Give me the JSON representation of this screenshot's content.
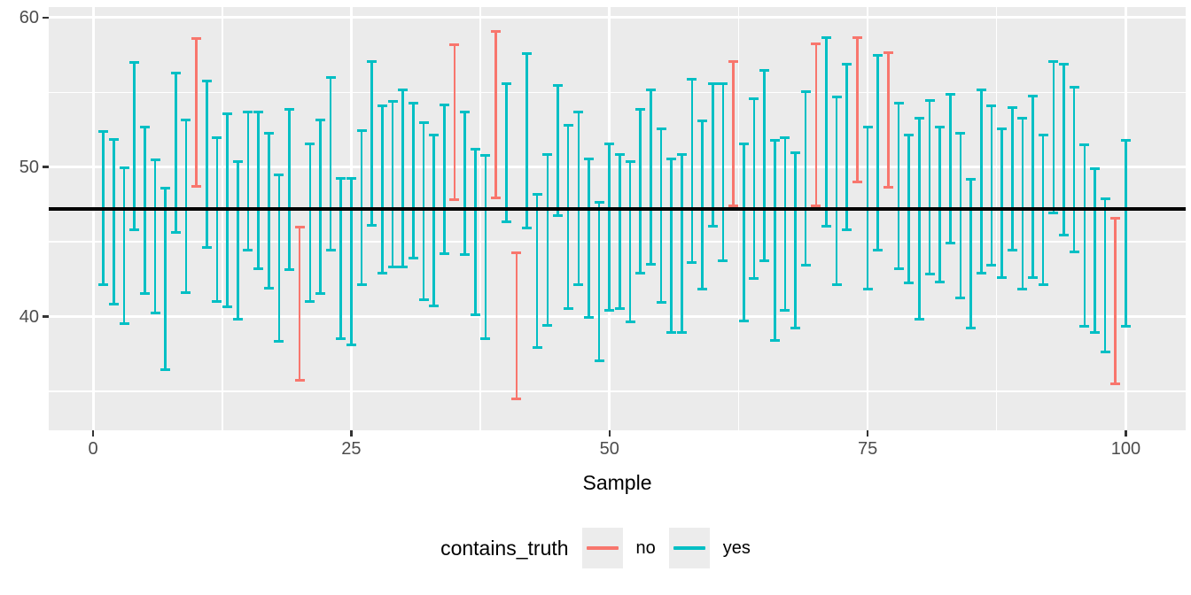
{
  "chart_data": {
    "type": "errorbar",
    "title": "",
    "xlabel": "Sample",
    "ylabel": "",
    "x_ticks": [
      0,
      25,
      50,
      75,
      100
    ],
    "y_ticks": [
      60,
      50,
      40
    ],
    "x_minor_gridlines": [
      12.5,
      37.5,
      62.5,
      87.5
    ],
    "y_minor_gridlines": [
      35,
      45,
      55
    ],
    "xlim": [
      -4.3,
      105.8
    ],
    "ylim": [
      32.4,
      60.7
    ],
    "grid": "on",
    "panel_background": "#EBEBEB",
    "gridline_color": "#FFFFFF",
    "truth_line_value": 47.2,
    "truth_line_color": "#000000",
    "legend": {
      "title": "contains_truth",
      "position": "bottom",
      "entries": [
        {
          "label": "no",
          "color": "#F8766D"
        },
        {
          "label": "yes",
          "color": "#00BFC4"
        }
      ]
    },
    "series_format": "[sample, lower, upper, contains_truth]",
    "bars": [
      [
        1,
        42.1,
        52.4,
        "yes"
      ],
      [
        2,
        40.8,
        51.9,
        "yes"
      ],
      [
        3,
        39.5,
        50.0,
        "yes"
      ],
      [
        4,
        45.8,
        57.0,
        "yes"
      ],
      [
        5,
        41.5,
        52.7,
        "yes"
      ],
      [
        6,
        40.2,
        50.5,
        "yes"
      ],
      [
        7,
        36.4,
        48.6,
        "yes"
      ],
      [
        8,
        45.6,
        56.3,
        "yes"
      ],
      [
        9,
        41.6,
        53.2,
        "yes"
      ],
      [
        10,
        48.7,
        58.6,
        "no"
      ],
      [
        11,
        44.6,
        55.8,
        "yes"
      ],
      [
        12,
        41.0,
        52.0,
        "yes"
      ],
      [
        13,
        40.6,
        53.6,
        "yes"
      ],
      [
        14,
        39.8,
        50.4,
        "yes"
      ],
      [
        15,
        44.4,
        53.7,
        "yes"
      ],
      [
        16,
        43.2,
        53.7,
        "yes"
      ],
      [
        17,
        41.9,
        52.3,
        "yes"
      ],
      [
        18,
        38.3,
        49.5,
        "yes"
      ],
      [
        19,
        43.1,
        53.9,
        "yes"
      ],
      [
        20,
        35.7,
        46.0,
        "no"
      ],
      [
        21,
        41.0,
        51.6,
        "yes"
      ],
      [
        22,
        41.5,
        53.2,
        "yes"
      ],
      [
        23,
        44.4,
        56.0,
        "yes"
      ],
      [
        24,
        38.5,
        49.3,
        "yes"
      ],
      [
        25,
        38.1,
        49.3,
        "yes"
      ],
      [
        26,
        42.1,
        52.5,
        "yes"
      ],
      [
        27,
        46.1,
        57.1,
        "yes"
      ],
      [
        28,
        42.9,
        54.1,
        "yes"
      ],
      [
        29,
        43.3,
        54.4,
        "yes"
      ],
      [
        30,
        43.3,
        55.2,
        "yes"
      ],
      [
        31,
        43.9,
        54.3,
        "yes"
      ],
      [
        32,
        41.1,
        53.0,
        "yes"
      ],
      [
        33,
        40.7,
        52.2,
        "yes"
      ],
      [
        34,
        44.2,
        54.2,
        "yes"
      ],
      [
        35,
        47.8,
        58.2,
        "no"
      ],
      [
        36,
        44.1,
        53.7,
        "yes"
      ],
      [
        37,
        40.1,
        51.2,
        "yes"
      ],
      [
        38,
        38.5,
        50.8,
        "yes"
      ],
      [
        39,
        47.9,
        59.1,
        "no"
      ],
      [
        40,
        46.3,
        55.6,
        "yes"
      ],
      [
        41,
        34.5,
        44.3,
        "no"
      ],
      [
        42,
        45.9,
        57.6,
        "yes"
      ],
      [
        43,
        37.9,
        48.2,
        "yes"
      ],
      [
        44,
        39.4,
        50.9,
        "yes"
      ],
      [
        45,
        46.7,
        55.5,
        "yes"
      ],
      [
        46,
        40.5,
        52.8,
        "yes"
      ],
      [
        47,
        42.1,
        53.7,
        "yes"
      ],
      [
        48,
        39.9,
        50.6,
        "yes"
      ],
      [
        49,
        37.0,
        47.7,
        "yes"
      ],
      [
        50,
        40.4,
        51.6,
        "yes"
      ],
      [
        51,
        40.5,
        50.9,
        "yes"
      ],
      [
        52,
        39.6,
        50.4,
        "yes"
      ],
      [
        53,
        42.9,
        53.9,
        "yes"
      ],
      [
        54,
        43.5,
        55.2,
        "yes"
      ],
      [
        55,
        40.9,
        52.6,
        "yes"
      ],
      [
        56,
        38.9,
        50.6,
        "yes"
      ],
      [
        57,
        38.9,
        50.9,
        "yes"
      ],
      [
        58,
        43.6,
        55.9,
        "yes"
      ],
      [
        59,
        41.8,
        53.1,
        "yes"
      ],
      [
        60,
        46.0,
        55.6,
        "yes"
      ],
      [
        61,
        43.7,
        55.6,
        "yes"
      ],
      [
        62,
        47.4,
        57.1,
        "no"
      ],
      [
        63,
        39.7,
        51.6,
        "yes"
      ],
      [
        64,
        42.5,
        54.6,
        "yes"
      ],
      [
        65,
        43.7,
        56.5,
        "yes"
      ],
      [
        66,
        38.4,
        51.8,
        "yes"
      ],
      [
        67,
        40.4,
        52.0,
        "yes"
      ],
      [
        68,
        39.2,
        51.0,
        "yes"
      ],
      [
        69,
        43.4,
        55.1,
        "yes"
      ],
      [
        70,
        47.4,
        58.3,
        "no"
      ],
      [
        71,
        46.0,
        58.7,
        "yes"
      ],
      [
        72,
        42.1,
        54.7,
        "yes"
      ],
      [
        73,
        45.8,
        56.9,
        "yes"
      ],
      [
        74,
        49.0,
        58.7,
        "no"
      ],
      [
        75,
        41.8,
        52.7,
        "yes"
      ],
      [
        76,
        44.4,
        57.5,
        "yes"
      ],
      [
        77,
        48.6,
        57.7,
        "no"
      ],
      [
        78,
        43.2,
        54.3,
        "yes"
      ],
      [
        79,
        42.2,
        52.2,
        "yes"
      ],
      [
        80,
        39.8,
        53.3,
        "yes"
      ],
      [
        81,
        42.8,
        54.5,
        "yes"
      ],
      [
        82,
        42.3,
        52.7,
        "yes"
      ],
      [
        83,
        44.9,
        54.9,
        "yes"
      ],
      [
        84,
        41.2,
        52.3,
        "yes"
      ],
      [
        85,
        39.2,
        49.2,
        "yes"
      ],
      [
        86,
        42.9,
        55.2,
        "yes"
      ],
      [
        87,
        43.4,
        54.1,
        "yes"
      ],
      [
        88,
        42.6,
        52.6,
        "yes"
      ],
      [
        89,
        44.4,
        54.0,
        "yes"
      ],
      [
        90,
        41.8,
        53.3,
        "yes"
      ],
      [
        91,
        42.6,
        54.8,
        "yes"
      ],
      [
        92,
        42.1,
        52.2,
        "yes"
      ],
      [
        93,
        46.9,
        57.1,
        "yes"
      ],
      [
        94,
        45.4,
        56.9,
        "yes"
      ],
      [
        95,
        44.3,
        55.4,
        "yes"
      ],
      [
        96,
        39.3,
        51.5,
        "yes"
      ],
      [
        97,
        38.9,
        49.9,
        "yes"
      ],
      [
        98,
        37.6,
        47.9,
        "yes"
      ],
      [
        99,
        35.5,
        46.6,
        "no"
      ],
      [
        100,
        39.3,
        51.8,
        "yes"
      ]
    ]
  }
}
